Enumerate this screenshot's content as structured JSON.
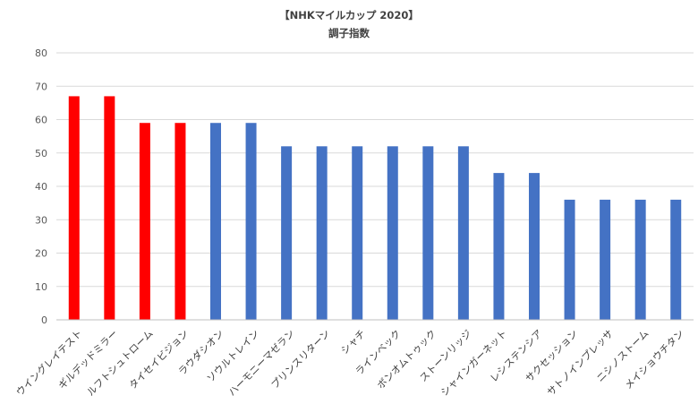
{
  "chart_data": {
    "type": "bar",
    "title": "【NHKマイルカップ 2020】",
    "subtitle": "調子指数",
    "xlabel": "",
    "ylabel": "",
    "ylim": [
      0,
      80
    ],
    "yticks": [
      0,
      10,
      20,
      30,
      40,
      50,
      60,
      70,
      80
    ],
    "grid": true,
    "legend": "none",
    "categories": [
      "ウイングレイテスト",
      "ギルデッドミラー",
      "ルフトシュトローム",
      "タイセイビジョン",
      "ラウダシオン",
      "ソウルトレイン",
      "ハーモニーマゼラン",
      "プリンスリターン",
      "シャチ",
      "ラインベック",
      "ボンオムトゥック",
      "ストーンリッジ",
      "シャインガーネット",
      "レシステンシア",
      "サクセッション",
      "サトノインプレッサ",
      "ニシノストーム",
      "メイショウチタン"
    ],
    "values": [
      67,
      67,
      59,
      59,
      59,
      59,
      52,
      52,
      52,
      52,
      52,
      52,
      44,
      44,
      36,
      36,
      36,
      36
    ],
    "bar_colors": [
      "#ff0000",
      "#ff0000",
      "#ff0000",
      "#ff0000",
      "#4472c4",
      "#4472c4",
      "#4472c4",
      "#4472c4",
      "#4472c4",
      "#4472c4",
      "#4472c4",
      "#4472c4",
      "#4472c4",
      "#4472c4",
      "#4472c4",
      "#4472c4",
      "#4472c4",
      "#4472c4"
    ],
    "colors": {
      "highlight": "#ff0000",
      "default": "#4472c4"
    }
  }
}
